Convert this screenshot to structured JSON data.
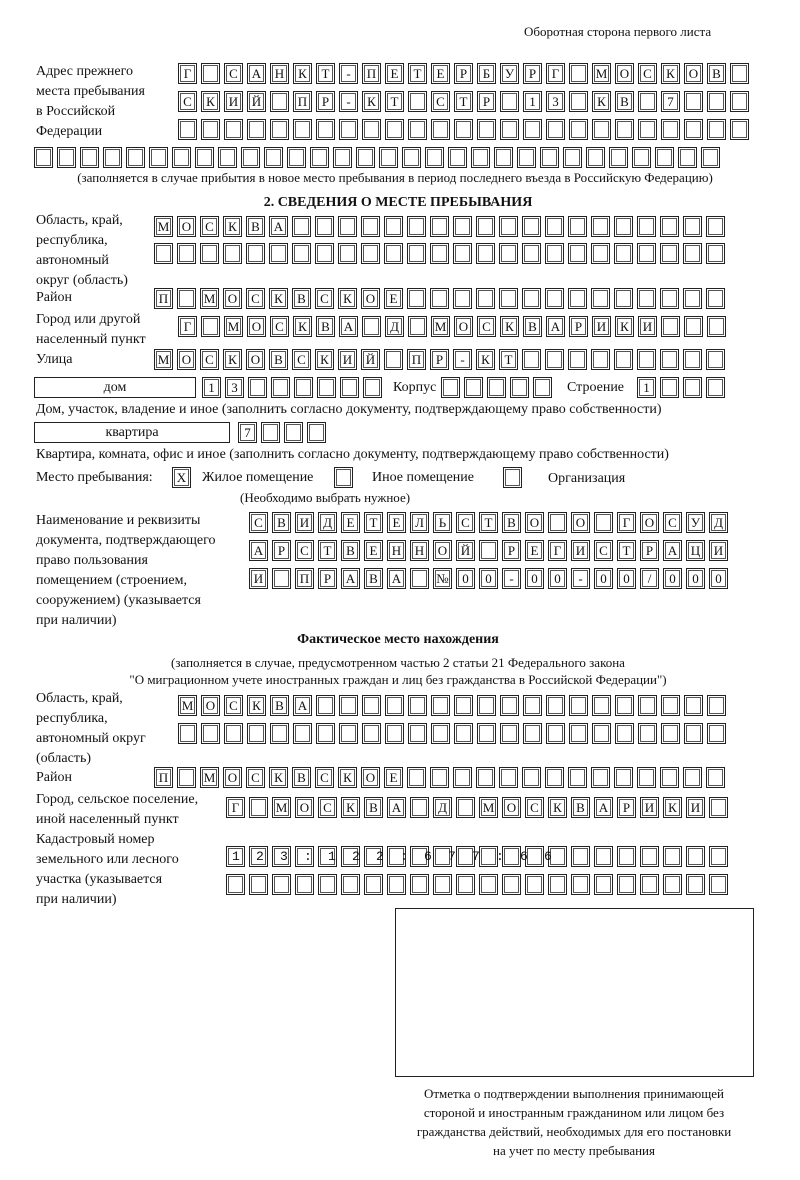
{
  "page_header": "Оборотная сторона первого листа",
  "previous_address": {
    "label_lines": [
      "Адрес прежнего",
      "места пребывания",
      "в Российской",
      "Федерации"
    ],
    "rows": [
      "Г САНКТ-ПЕТЕРБУРГ МОСКОВ",
      "СКИЙ ПР-КТ СТР 13 КВ 7  ",
      "",
      ""
    ],
    "note": "(заполняется в случае прибытия в новое место пребывания в период последнего въезда в Российскую Федерацию)"
  },
  "section2": {
    "heading": "2. СВЕДЕНИЯ О МЕСТЕ ПРЕБЫВАНИЯ",
    "region_label_lines": [
      "Область, край,",
      "республика,",
      "автономный",
      "округ (область)"
    ],
    "region_rows": [
      "МОСКВА",
      ""
    ],
    "district_label": "Район",
    "district": "П МОСКВСКОЕ",
    "city_label_lines": [
      "Город или другой",
      "населенный пункт"
    ],
    "city": "Г МОСКВА Д МОСКВАРИКИ",
    "street_label": "Улица",
    "street": "МОСКОВСКИЙ ПР-КТ",
    "house_type": "дом",
    "house_number": "13",
    "korpus_label": "Корпус",
    "korpus": "",
    "building_label": "Строение",
    "building": "1",
    "house_caption": "Дом, участок, владение и иное (заполнить согласно документу, подтверждающему право собственности)",
    "apartment_type": "квартира",
    "apartment_number": "7",
    "apartment_caption": "Квартира, комната, офис и иное (заполнить согласно документу, подтверждающему право собственности)",
    "stay_place_label": "Место пребывания:",
    "options": [
      {
        "label": "Жилое помещение",
        "mark": "X"
      },
      {
        "label": "Иное помещение",
        "mark": ""
      },
      {
        "label": "Организация",
        "mark": ""
      }
    ],
    "choose_note": "(Необходимо выбрать нужное)",
    "document_label_lines": [
      "Наименование и реквизиты",
      "документа, подтверждающего",
      "право пользования",
      "помещением (строением,",
      "сооружением) (указывается",
      "при наличии)"
    ],
    "document_rows": [
      "СВИДЕТЕЛЬСТВО О ГОСУД",
      "АРСТВЕННОЙ РЕГИСТРАЦИ",
      "И ПРАВА №00-00-00/000"
    ]
  },
  "actual_location": {
    "heading": "Фактическое место нахождения",
    "note_lines": [
      "(заполняется в случае, предусмотренном частью 2 статьи 21 Федерального закона",
      "\"О миграционном учете иностранных граждан и лиц без гражданства в Российской Федерации\")"
    ],
    "region_label_lines": [
      "Область, край,",
      "республика,",
      "автономный округ",
      "(область)"
    ],
    "region_rows": [
      "МОСКВА",
      ""
    ],
    "district_label": "Район",
    "district": "П МОСКВСКОЕ",
    "city_label_lines": [
      "Город, сельское поселение,",
      "иной населенный пункт"
    ],
    "city": "Г МОСКВА Д МОСКВАРИКИ",
    "cadastral_label_lines": [
      "Кадастровый номер",
      "земельного или лесного",
      "участка (указывается",
      "при наличии)"
    ],
    "cadastral_rows": [
      "123:122:677:66",
      ""
    ]
  },
  "confirmation": {
    "caption_lines": [
      "Отметка о подтверждении выполнения принимающей",
      "стороной и иностранным гражданином или лицом без",
      "гражданства действий, необходимых для его постановки",
      "на учет по месту пребывания"
    ]
  }
}
